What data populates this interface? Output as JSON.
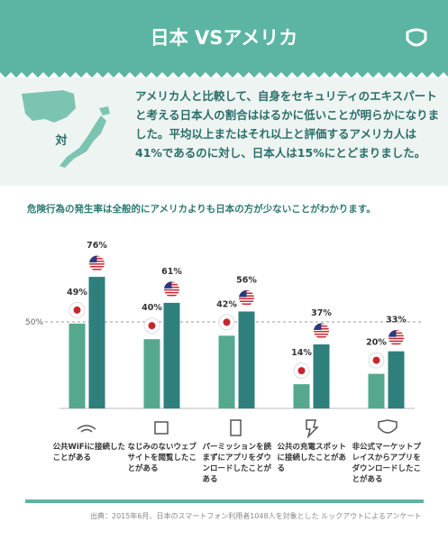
{
  "header": {
    "title": "日本 VSアメリカ"
  },
  "intro": {
    "map_label": "対",
    "text": "アメリカ人と比較して、自身をセキュリティのエキスパートと考える日本人の割合ははるかに低いことが明らかになりました。平均以上またはそれ以上と評価するアメリカ人は41%であるのに対し、日本人は15%にとどまりました。"
  },
  "chart_data": {
    "type": "bar",
    "title": "危険行為の発生率は全般的にアメリカよりも日本の方が少ないことがわかります。",
    "categories": [
      "公共WiFiに接続したことがある",
      "なじみのないウェブサイトを閲覧したことがある",
      "パーミッションを読まずにアプリをダウンロードしたことがある",
      "公共の充電スポットに接続したことがある",
      "非公式マーケットプレイスからアプリをダウンロードしたことがある"
    ],
    "series": [
      {
        "color": "#55a88e",
        "marker": "japan-flag",
        "values": [
          49,
          40,
          42,
          14,
          20
        ],
        "value_labels": [
          "49%",
          "40%",
          "42%",
          "14%",
          "20%"
        ]
      },
      {
        "color": "#2f7f7d",
        "marker": "us-flag",
        "values": [
          76,
          61,
          56,
          37,
          33
        ],
        "value_labels": [
          "76%",
          "61%",
          "56%",
          "37%",
          "33%"
        ]
      }
    ],
    "ylim": [
      0,
      100
    ],
    "yticks": [
      {
        "value": 50,
        "label": "50%"
      }
    ],
    "grid": true
  },
  "footer": {
    "source": "出典：2015年6月、日本のスマートフォン利用者1048人を対象とした ルックアウトによるアンケート"
  }
}
